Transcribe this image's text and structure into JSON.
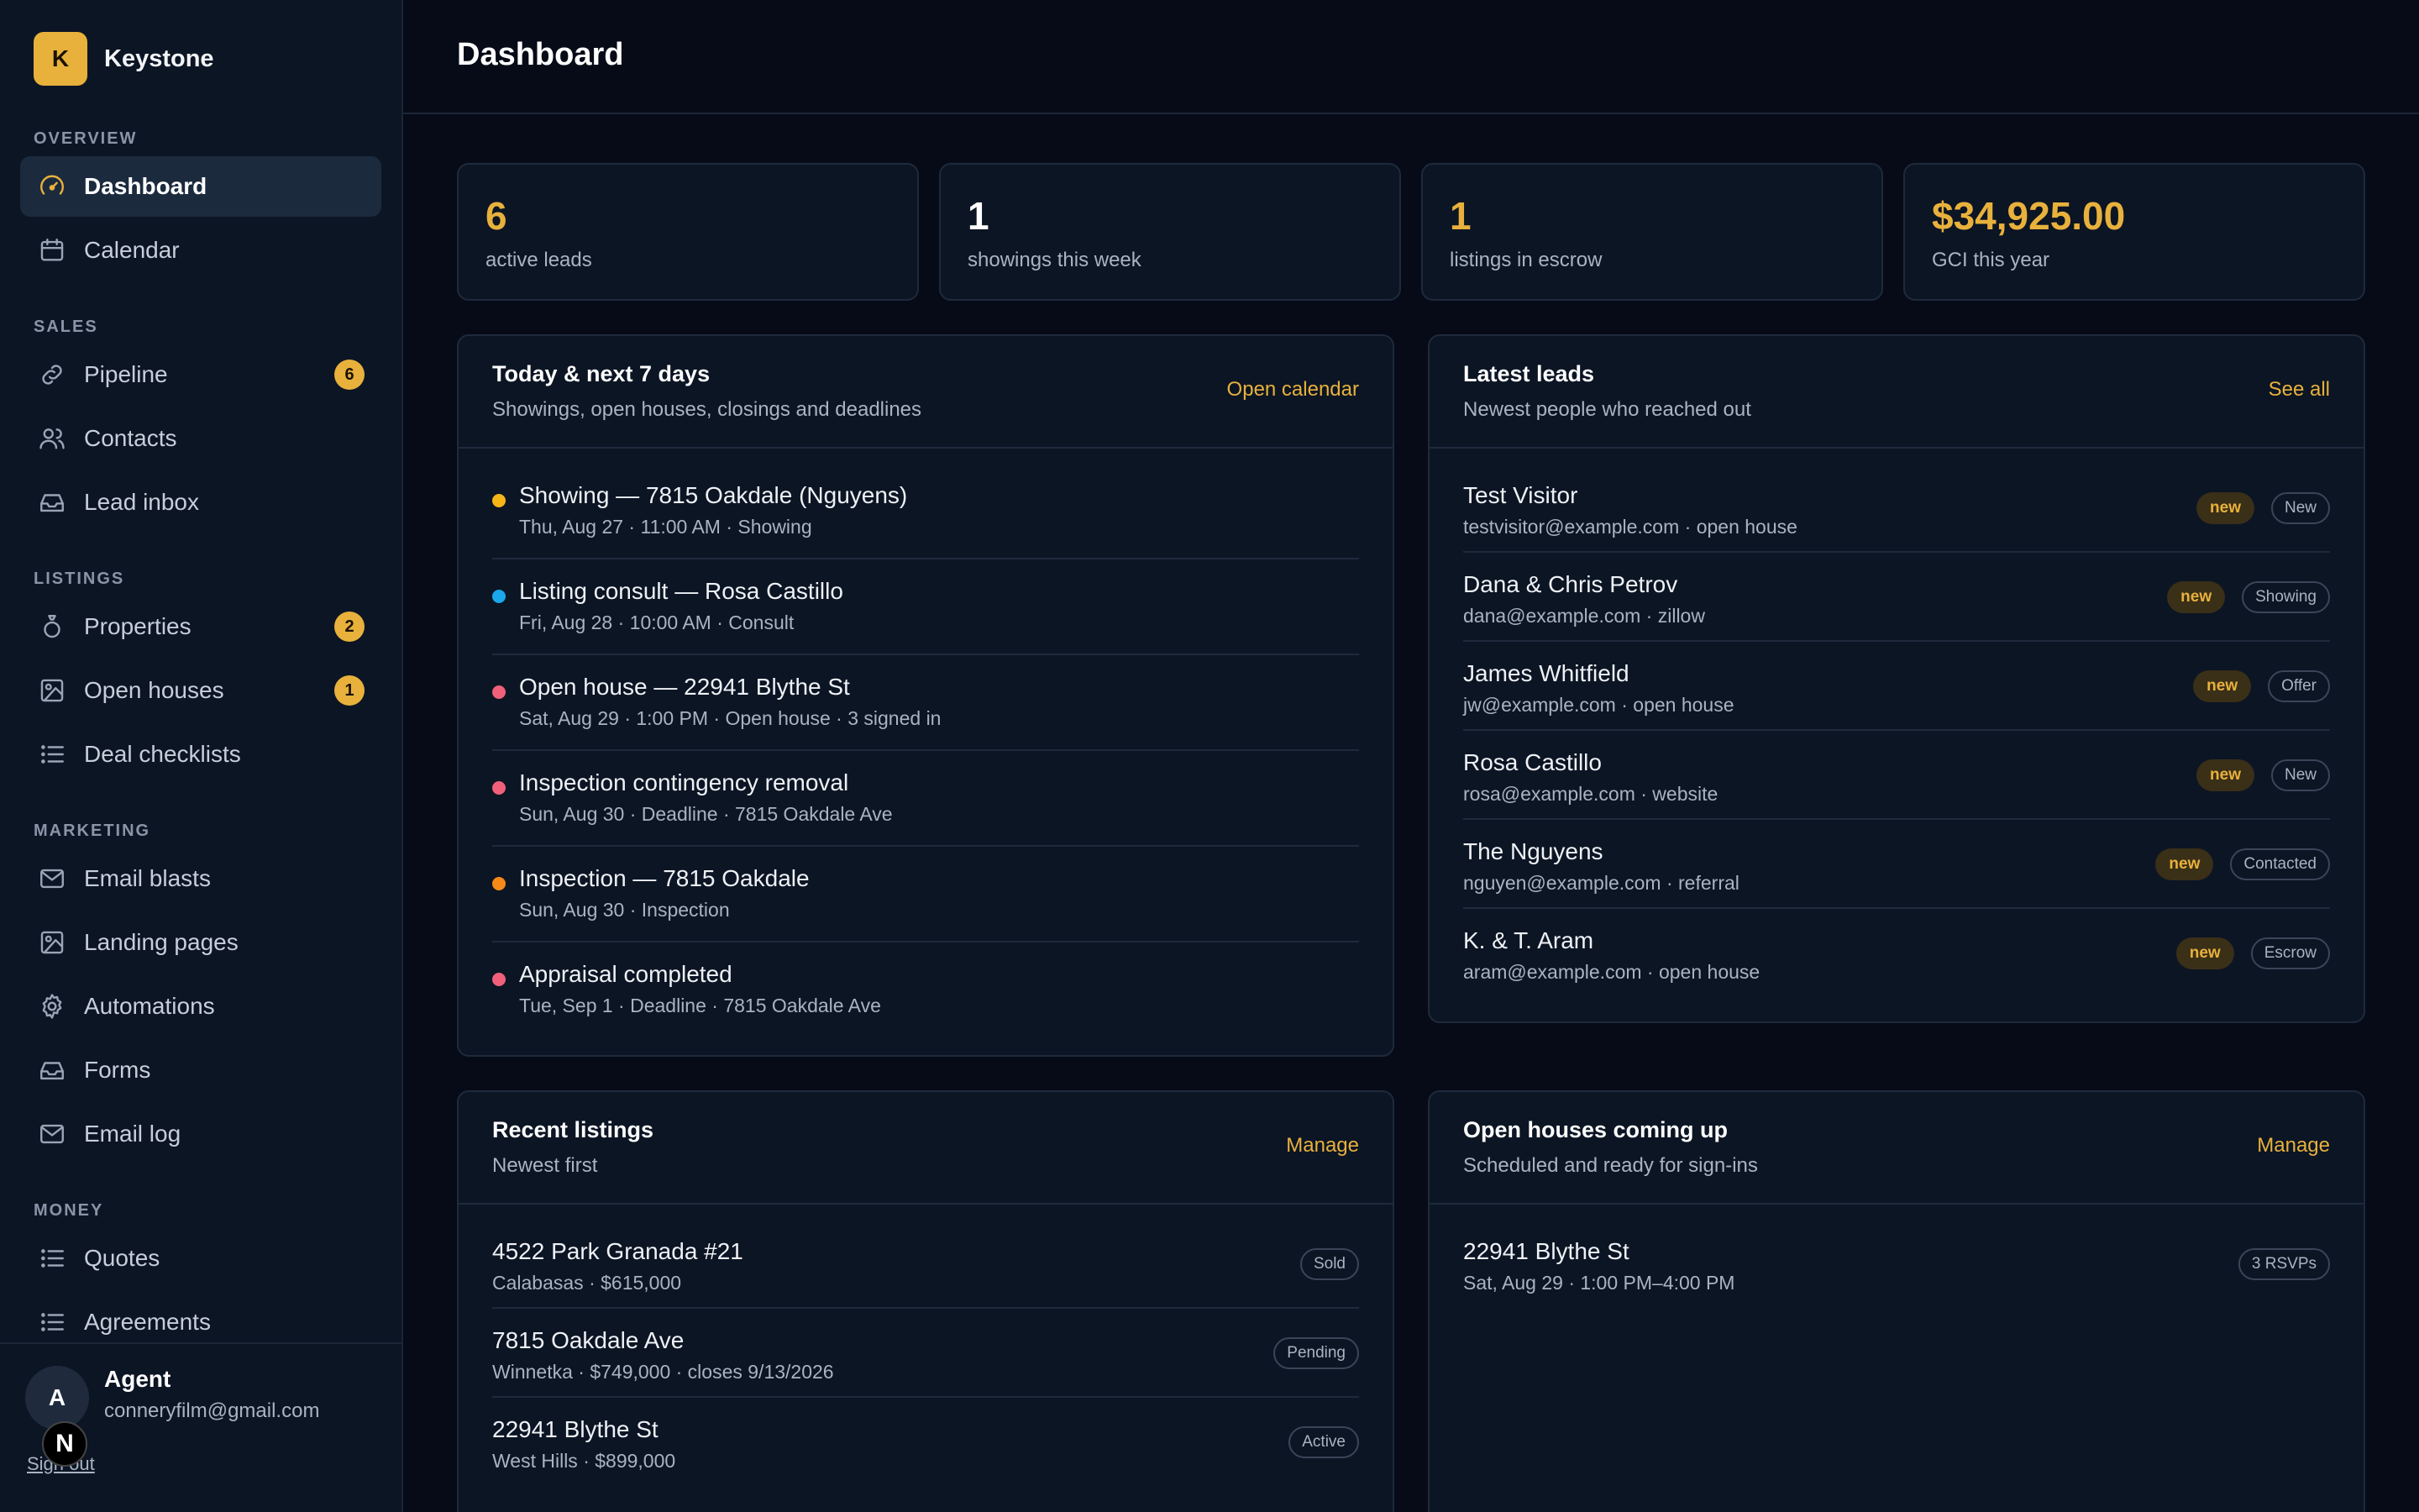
{
  "app": {
    "name": "Keystone",
    "logo_letter": "K"
  },
  "sidebar": {
    "sections": [
      {
        "label": "OVERVIEW",
        "items": [
          {
            "label": "Dashboard",
            "icon": "gauge-icon",
            "active": true
          },
          {
            "label": "Calendar",
            "icon": "calendar-icon"
          }
        ]
      },
      {
        "label": "SALES",
        "items": [
          {
            "label": "Pipeline",
            "icon": "link-icon",
            "badge": "6"
          },
          {
            "label": "Contacts",
            "icon": "users-icon"
          },
          {
            "label": "Lead inbox",
            "icon": "inbox-icon"
          }
        ]
      },
      {
        "label": "LISTINGS",
        "items": [
          {
            "label": "Properties",
            "icon": "ring-icon",
            "badge": "2"
          },
          {
            "label": "Open houses",
            "icon": "image-icon",
            "badge": "1"
          },
          {
            "label": "Deal checklists",
            "icon": "list-icon"
          }
        ]
      },
      {
        "label": "MARKETING",
        "items": [
          {
            "label": "Email blasts",
            "icon": "mail-icon"
          },
          {
            "label": "Landing pages",
            "icon": "image-icon"
          },
          {
            "label": "Automations",
            "icon": "gear-icon"
          },
          {
            "label": "Forms",
            "icon": "inbox-icon"
          },
          {
            "label": "Email log",
            "icon": "mail-icon"
          }
        ]
      },
      {
        "label": "MONEY",
        "items": [
          {
            "label": "Quotes",
            "icon": "list-icon"
          },
          {
            "label": "Agreements",
            "icon": "list-icon"
          }
        ]
      }
    ],
    "user": {
      "initial": "A",
      "name": "Agent",
      "email": "conneryfilm@gmail.com",
      "signout": "Sign out"
    },
    "framework_badge": "N"
  },
  "header": {
    "title": "Dashboard"
  },
  "stats": [
    {
      "value": "6",
      "label": "active leads",
      "color": "#e8b13c"
    },
    {
      "value": "1",
      "label": "showings this week",
      "color": "#ffffff"
    },
    {
      "value": "1",
      "label": "listings in escrow",
      "color": "#e8b13c"
    },
    {
      "value": "$34,925.00",
      "label": "GCI this year",
      "color": "#e8b13c"
    }
  ],
  "upcoming": {
    "title": "Today & next 7 days",
    "subtitle": "Showings, open houses, closings and deadlines",
    "link": "Open calendar",
    "events": [
      {
        "title": "Showing — 7815 Oakdale (Nguyens)",
        "meta": "Thu, Aug 27 · 11:00 AM · Showing",
        "color": "#f5b518"
      },
      {
        "title": "Listing consult — Rosa Castillo",
        "meta": "Fri, Aug 28 · 10:00 AM · Consult",
        "color": "#1aa7ec"
      },
      {
        "title": "Open house — 22941 Blythe St",
        "meta": "Sat, Aug 29 · 1:00 PM · Open house · 3 signed in",
        "color": "#f0607a"
      },
      {
        "title": "Inspection contingency removal",
        "meta": "Sun, Aug 30 · Deadline · 7815 Oakdale Ave",
        "color": "#f0607a"
      },
      {
        "title": "Inspection — 7815 Oakdale",
        "meta": "Sun, Aug 30 · Inspection",
        "color": "#f58a18"
      },
      {
        "title": "Appraisal completed",
        "meta": "Tue, Sep 1 · Deadline · 7815 Oakdale Ave",
        "color": "#f0607a"
      }
    ]
  },
  "leads": {
    "title": "Latest leads",
    "subtitle": "Newest people who reached out",
    "link": "See all",
    "items": [
      {
        "name": "Test Visitor",
        "meta": "testvisitor@example.com · open house",
        "new": "new",
        "status": "New"
      },
      {
        "name": "Dana & Chris Petrov",
        "meta": "dana@example.com · zillow",
        "new": "new",
        "status": "Showing"
      },
      {
        "name": "James Whitfield",
        "meta": "jw@example.com · open house",
        "new": "new",
        "status": "Offer"
      },
      {
        "name": "Rosa Castillo",
        "meta": "rosa@example.com · website",
        "new": "new",
        "status": "New"
      },
      {
        "name": "The Nguyens",
        "meta": "nguyen@example.com · referral",
        "new": "new",
        "status": "Contacted"
      },
      {
        "name": "K. & T. Aram",
        "meta": "aram@example.com · open house",
        "new": "new",
        "status": "Escrow"
      }
    ]
  },
  "listings": {
    "title": "Recent listings",
    "subtitle": "Newest first",
    "link": "Manage",
    "items": [
      {
        "address": "4522 Park Granada #21",
        "meta": "Calabasas · $615,000",
        "status": "Sold"
      },
      {
        "address": "7815 Oakdale Ave",
        "meta": "Winnetka · $749,000 · closes 9/13/2026",
        "status": "Pending"
      },
      {
        "address": "22941 Blythe St",
        "meta": "West Hills · $899,000",
        "status": "Active"
      }
    ]
  },
  "open_houses": {
    "title": "Open houses coming up",
    "subtitle": "Scheduled and ready for sign-ins",
    "link": "Manage",
    "items": [
      {
        "address": "22941 Blythe St",
        "meta": "Sat, Aug 29 · 1:00 PM–4:00 PM",
        "rsvps": "3 RSVPs"
      }
    ]
  }
}
